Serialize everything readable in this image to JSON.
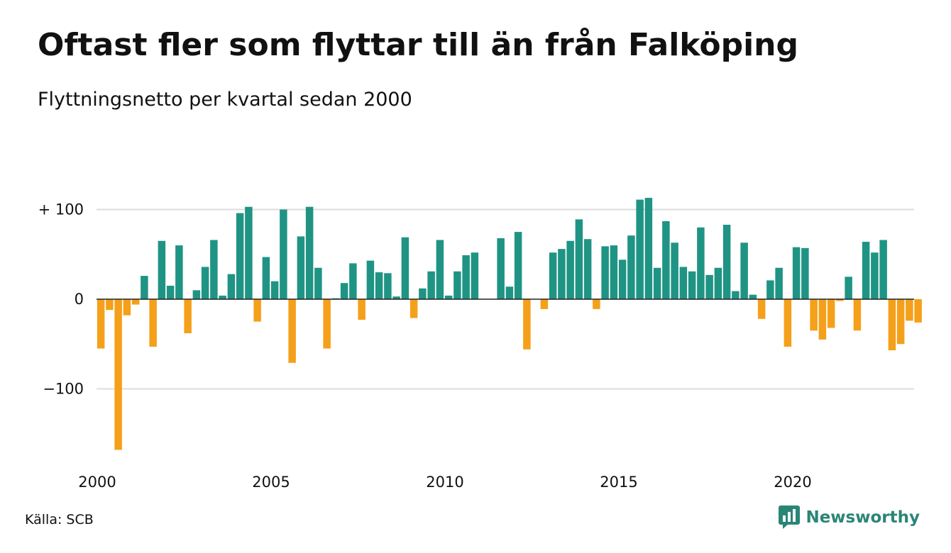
{
  "header": {
    "title": "Oftast fler som flyttar till än från Falköping",
    "subtitle": "Flyttningsnetto per kvartal sedan 2000"
  },
  "footer": {
    "source": "Källa: SCB",
    "brand": "Newsworthy"
  },
  "colors": {
    "positive": "#1f9484",
    "negative": "#f5a01a",
    "grid": "#dddddd",
    "zero_line": "#222222",
    "brand": "#2a8577"
  },
  "chart_data": {
    "type": "bar",
    "title": "Oftast fler som flyttar till än från Falköping",
    "subtitle": "Flyttningsnetto per kvartal sedan 2000",
    "xlabel": "",
    "ylabel": "",
    "ylim": [
      -170,
      113
    ],
    "grid": true,
    "y_ticks": [
      {
        "value": 100,
        "label": "+ 100"
      },
      {
        "value": 0,
        "label": "0"
      },
      {
        "value": -100,
        "label": "−100"
      }
    ],
    "x_ticks": [
      {
        "year": 2000,
        "label": "2000"
      },
      {
        "year": 2005,
        "label": "2005"
      },
      {
        "year": 2010,
        "label": "2010"
      },
      {
        "year": 2015,
        "label": "2015"
      },
      {
        "year": 2020,
        "label": "2020"
      }
    ],
    "start_year": 2000,
    "values": [
      -55,
      -12,
      -168,
      -18,
      -6,
      26,
      -53,
      65,
      15,
      60,
      -38,
      10,
      36,
      66,
      4,
      28,
      96,
      103,
      -25,
      47,
      20,
      100,
      -71,
      70,
      103,
      35,
      -55,
      1,
      18,
      40,
      -23,
      43,
      30,
      29,
      3,
      69,
      -21,
      12,
      31,
      66,
      4,
      31,
      49,
      52,
      0,
      0,
      68,
      14,
      75,
      -56,
      0,
      -11,
      52,
      56,
      65,
      89,
      67,
      -11,
      59,
      60,
      44,
      71,
      111,
      113,
      35,
      87,
      63,
      36,
      31,
      80,
      27,
      35,
      83,
      9,
      63,
      5,
      -22,
      21,
      35,
      -53,
      58,
      57,
      -35,
      -45,
      -32,
      -2,
      25,
      -35,
      64,
      52,
      66,
      -57,
      -50,
      -24,
      -26
    ]
  }
}
